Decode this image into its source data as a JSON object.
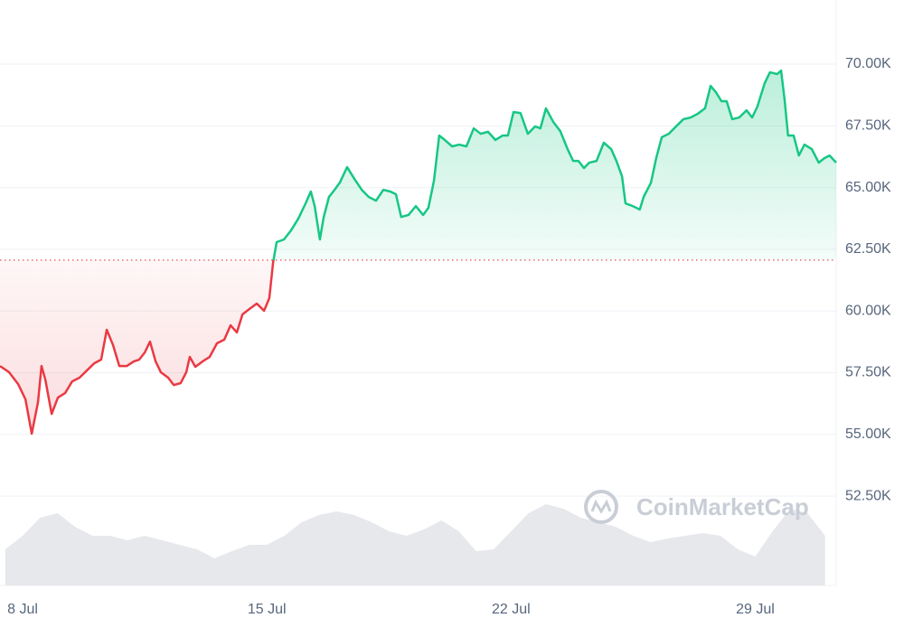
{
  "chart_data": {
    "type": "line",
    "x": [
      -0.65,
      -0.39,
      -0.13,
      0.08,
      0.26,
      0.44,
      0.54,
      0.65,
      0.83,
      1.01,
      1.22,
      1.42,
      1.63,
      1.84,
      2.05,
      2.25,
      2.41,
      2.59,
      2.77,
      2.98,
      3.19,
      3.34,
      3.5,
      3.65,
      3.81,
      3.96,
      4.17,
      4.33,
      4.53,
      4.69,
      4.79,
      4.95,
      5.16,
      5.36,
      5.57,
      5.78,
      5.96,
      6.14,
      6.3,
      6.5,
      6.71,
      6.92,
      7.07,
      7.18,
      7.28,
      7.49,
      7.69,
      7.9,
      8.11,
      8.26,
      8.37,
      8.52,
      8.63,
      8.78,
      8.94,
      9.09,
      9.3,
      9.51,
      9.72,
      9.92,
      10.13,
      10.34,
      10.54,
      10.7,
      10.85,
      11.06,
      11.27,
      11.48,
      11.63,
      11.79,
      11.94,
      12.1,
      12.31,
      12.51,
      12.72,
      12.93,
      13.13,
      13.34,
      13.55,
      13.76,
      13.91,
      14.07,
      14.27,
      14.48,
      14.69,
      14.84,
      15.0,
      15.21,
      15.41,
      15.62,
      15.78,
      15.93,
      16.09,
      16.24,
      16.45,
      16.66,
      16.87,
      17.02,
      17.18,
      17.28,
      17.49,
      17.69,
      17.8,
      18.01,
      18.16,
      18.32,
      18.52,
      18.73,
      18.94,
      19.15,
      19.35,
      19.56,
      19.72,
      19.87,
      20.03,
      20.18,
      20.34,
      20.54,
      20.75,
      20.91,
      21.06,
      21.27,
      21.42,
      21.63,
      21.74,
      21.84,
      21.94,
      22.1,
      22.25,
      22.41,
      22.62,
      22.82,
      22.98,
      23.13,
      23.32
    ],
    "values": [
      57770,
      57520,
      57040,
      56420,
      55030,
      56310,
      57770,
      57220,
      55830,
      56490,
      56680,
      57150,
      57300,
      57590,
      57880,
      58030,
      59240,
      58620,
      57770,
      57770,
      57960,
      58030,
      58320,
      58760,
      57960,
      57520,
      57300,
      57000,
      57080,
      57520,
      58140,
      57740,
      57960,
      58140,
      58690,
      58840,
      59420,
      59130,
      59860,
      60080,
      60300,
      60010,
      60520,
      61980,
      62790,
      62900,
      63260,
      63740,
      64360,
      64840,
      64250,
      62900,
      63810,
      64620,
      64910,
      65200,
      65830,
      65350,
      64910,
      64620,
      64470,
      64910,
      64840,
      64730,
      63810,
      63890,
      64250,
      63890,
      64180,
      65280,
      67110,
      66930,
      66670,
      66740,
      66670,
      67400,
      67180,
      67260,
      66930,
      67110,
      67110,
      68060,
      68020,
      67180,
      67480,
      67400,
      68210,
      67660,
      67290,
      66560,
      66080,
      66080,
      65790,
      66010,
      66080,
      66820,
      66560,
      66080,
      65460,
      64360,
      64250,
      64110,
      64620,
      65200,
      66190,
      67040,
      67180,
      67480,
      67770,
      67840,
      67990,
      68210,
      69120,
      68870,
      68500,
      68500,
      67770,
      67840,
      68130,
      67840,
      68280,
      69230,
      69670,
      69600,
      69740,
      68570,
      67110,
      67110,
      66300,
      66740,
      66560,
      66010,
      66190,
      66300,
      66010
    ],
    "baseline": 62060,
    "colors": {
      "up": "#16c784",
      "down": "#ea3943",
      "volume": "#e6e8ec"
    },
    "xlim": [
      -0.65,
      23.32
    ],
    "xticks": [
      {
        "value": 0,
        "label": "8 Jul"
      },
      {
        "value": 7,
        "label": "15 Jul"
      },
      {
        "value": 14,
        "label": "22 Jul"
      },
      {
        "value": 21,
        "label": "29 Jul"
      }
    ],
    "ylim": [
      48880,
      72600
    ],
    "yticks": [
      {
        "value": 52500,
        "label": "52.50K"
      },
      {
        "value": 55000,
        "label": "55.00K"
      },
      {
        "value": 57500,
        "label": "57.50K"
      },
      {
        "value": 60000,
        "label": "60.00K"
      },
      {
        "value": 62500,
        "label": "62.50K"
      },
      {
        "value": 65000,
        "label": "65.00K"
      },
      {
        "value": 67500,
        "label": "67.50K"
      },
      {
        "value": 70000,
        "label": "70.00K"
      }
    ],
    "grid": true,
    "volume": {
      "x": [
        -0.5,
        0,
        0.5,
        1,
        1.5,
        2,
        2.5,
        3,
        3.5,
        4,
        4.5,
        5,
        5.5,
        6,
        6.5,
        7,
        7.5,
        8,
        8.5,
        9,
        9.5,
        10,
        10.5,
        11,
        11.5,
        12,
        12.5,
        13,
        13.5,
        14,
        14.5,
        15,
        15.5,
        16,
        16.5,
        17,
        17.5,
        18,
        18.5,
        19,
        19.5,
        20,
        20.5,
        21,
        21.5,
        22,
        22.5,
        23
      ],
      "values": [
        40,
        55,
        75,
        80,
        65,
        55,
        55,
        50,
        55,
        50,
        45,
        40,
        30,
        38,
        45,
        45,
        55,
        70,
        78,
        82,
        78,
        70,
        60,
        55,
        62,
        72,
        60,
        38,
        40,
        60,
        80,
        90,
        85,
        75,
        70,
        65,
        55,
        48,
        52,
        55,
        58,
        55,
        40,
        32,
        60,
        85,
        80,
        55
      ],
      "lim": [
        0,
        100
      ]
    },
    "watermark": "CoinMarketCap"
  }
}
